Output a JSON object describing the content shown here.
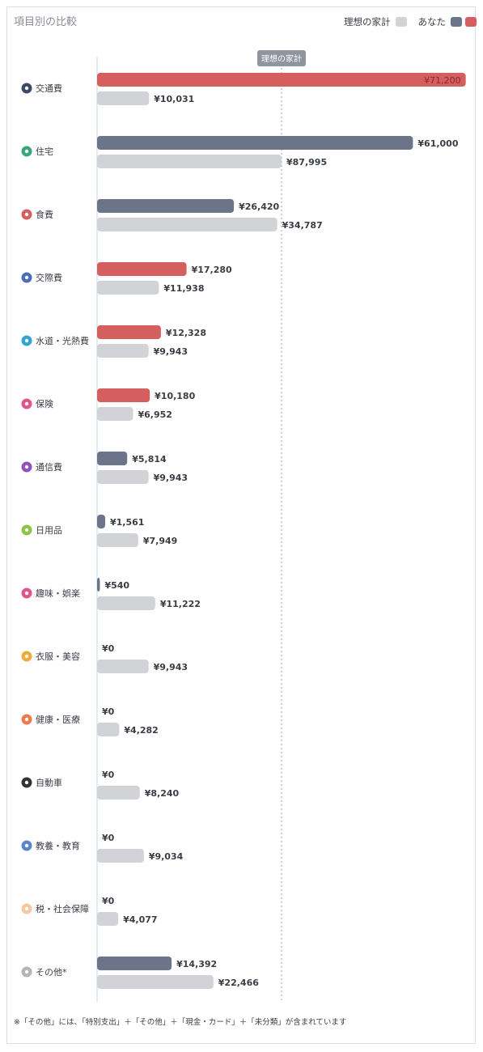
{
  "title": "項目別の比較",
  "legend": {
    "ideal_label": "理想の家計",
    "you_label": "あなた",
    "colors": {
      "ideal": "#d2d3d7",
      "you_under": "#6b7489",
      "you_over": "#d55e5e"
    }
  },
  "marker_label": "理想の家計",
  "footnote": "※「その他」には、「特別支出」＋「その他」＋「現金・カード」＋「未分類」が含まれています",
  "chart_data": {
    "type": "bar",
    "orientation": "horizontal",
    "categories": [
      "交通費",
      "住宅",
      "食費",
      "交際費",
      "水道・光熱費",
      "保険",
      "通信費",
      "日用品",
      "趣味・娯楽",
      "衣服・美容",
      "健康・医療",
      "自動車",
      "教養・教育",
      "税・社会保障",
      "その他*"
    ],
    "icons": [
      "train-icon",
      "home-icon",
      "fork-knife-icon",
      "people-icon",
      "faucet-icon",
      "shield-icon",
      "antenna-icon",
      "brush-icon",
      "star-icon",
      "trophy-icon",
      "plus-cross-icon",
      "car-icon",
      "book-icon",
      "tax-icon",
      "ellipsis-icon"
    ],
    "icon_colors": [
      "#3d4a63",
      "#3aa67a",
      "#d55e5e",
      "#4a6fb5",
      "#33a3d4",
      "#e0558c",
      "#8e52b8",
      "#8cc34a",
      "#e0558c",
      "#f2a93b",
      "#ef7b4d",
      "#333333",
      "#5b86c9",
      "#f4c9a0",
      "#b5b5b5"
    ],
    "series": [
      {
        "name": "あなた",
        "values": [
          71200,
          61000,
          26420,
          17280,
          12328,
          10180,
          5814,
          1561,
          540,
          0,
          0,
          0,
          0,
          0,
          14392
        ]
      },
      {
        "name": "理想の家計",
        "values": [
          10031,
          87995,
          34787,
          11938,
          9943,
          6952,
          9943,
          7949,
          11222,
          9943,
          4282,
          8240,
          9034,
          4077,
          22466
        ]
      }
    ],
    "you_labels": [
      "¥71,200",
      "¥61,000",
      "¥26,420",
      "¥17,280",
      "¥12,328",
      "¥10,180",
      "¥5,814",
      "¥1,561",
      "¥540",
      "¥0",
      "¥0",
      "¥0",
      "¥0",
      "¥0",
      "¥14,392"
    ],
    "ideal_labels": [
      "¥10,031",
      "¥87,995",
      "¥34,787",
      "¥11,938",
      "¥9,943",
      "¥6,952",
      "¥9,943",
      "¥7,949",
      "¥11,222",
      "¥9,943",
      "¥4,282",
      "¥8,240",
      "¥9,034",
      "¥4,077",
      "¥22,466"
    ],
    "you_over_ideal": [
      true,
      false,
      false,
      true,
      true,
      true,
      false,
      false,
      false,
      false,
      false,
      false,
      false,
      false,
      false
    ],
    "legend_position": "top-right"
  }
}
